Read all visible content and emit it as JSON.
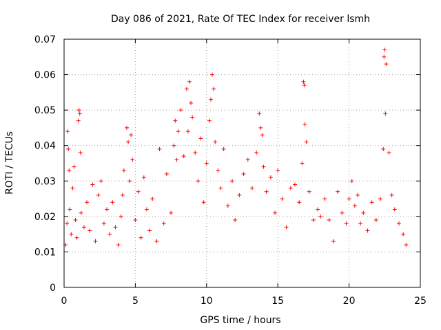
{
  "chart_data": {
    "type": "scatter",
    "title": "Day 086 of 2021, Rate Of TEC Index for receiver lsmh",
    "xlabel": "GPS time / hours",
    "ylabel": "ROTI / TECUs",
    "xlim": [
      0,
      25
    ],
    "ylim": [
      0,
      0.07
    ],
    "x_ticks": [
      0,
      5,
      10,
      15,
      20,
      25
    ],
    "y_ticks": [
      0,
      0.01,
      0.02,
      0.03,
      0.04,
      0.05,
      0.06,
      0.07
    ],
    "x_tick_labels": [
      "0",
      "5",
      "10",
      "15",
      "20",
      "25"
    ],
    "y_tick_labels": [
      "0",
      "0.01",
      "0.02",
      "0.03",
      "0.04",
      "0.05",
      "0.06",
      "0.07"
    ],
    "grid": true,
    "marker": "plus",
    "color": "#ff0000",
    "series": [
      {
        "x": [
          0.1,
          0.2,
          0.25,
          0.3,
          0.35,
          0.4,
          0.5,
          0.6,
          0.7,
          0.8,
          0.9,
          1.0,
          1.05,
          1.1,
          1.15,
          1.2,
          1.4,
          1.6,
          1.8,
          2.0,
          2.2,
          2.4,
          2.6,
          2.8,
          3.0,
          3.2,
          3.4,
          3.6,
          3.8,
          4.0,
          4.1,
          4.2,
          4.4,
          4.5,
          4.6,
          4.7,
          4.8,
          5.0,
          5.2,
          5.4,
          5.6,
          5.8,
          6.0,
          6.2,
          6.5,
          6.7,
          7.0,
          7.2,
          7.5,
          7.7,
          7.8,
          7.9,
          8.0,
          8.2,
          8.4,
          8.6,
          8.7,
          8.8,
          8.9,
          9.0,
          9.2,
          9.4,
          9.6,
          9.8,
          10.0,
          10.2,
          10.3,
          10.4,
          10.5,
          10.6,
          10.8,
          11.0,
          11.2,
          11.5,
          11.8,
          12.0,
          12.3,
          12.6,
          12.9,
          13.2,
          13.5,
          13.7,
          13.8,
          13.9,
          14.0,
          14.2,
          14.5,
          14.8,
          15.0,
          15.3,
          15.6,
          15.9,
          16.2,
          16.5,
          16.7,
          16.8,
          16.85,
          16.9,
          17.0,
          17.2,
          17.5,
          17.8,
          18.0,
          18.3,
          18.6,
          18.9,
          19.2,
          19.5,
          19.8,
          20.0,
          20.2,
          20.4,
          20.6,
          20.8,
          21.0,
          21.3,
          21.6,
          21.9,
          22.2,
          22.4,
          22.45,
          22.5,
          22.55,
          22.6,
          22.8,
          23.0,
          23.2,
          23.5,
          23.8,
          24.0
        ],
        "y": [
          0.012,
          0.018,
          0.044,
          0.039,
          0.033,
          0.022,
          0.015,
          0.028,
          0.034,
          0.019,
          0.014,
          0.047,
          0.05,
          0.049,
          0.038,
          0.021,
          0.017,
          0.024,
          0.016,
          0.029,
          0.013,
          0.026,
          0.03,
          0.018,
          0.022,
          0.015,
          0.024,
          0.017,
          0.012,
          0.02,
          0.026,
          0.033,
          0.045,
          0.041,
          0.03,
          0.043,
          0.036,
          0.019,
          0.027,
          0.014,
          0.031,
          0.022,
          0.016,
          0.025,
          0.013,
          0.039,
          0.018,
          0.032,
          0.021,
          0.04,
          0.047,
          0.036,
          0.044,
          0.05,
          0.037,
          0.056,
          0.044,
          0.058,
          0.052,
          0.048,
          0.038,
          0.03,
          0.042,
          0.024,
          0.035,
          0.047,
          0.053,
          0.06,
          0.056,
          0.041,
          0.033,
          0.028,
          0.039,
          0.023,
          0.03,
          0.019,
          0.026,
          0.032,
          0.036,
          0.028,
          0.038,
          0.049,
          0.045,
          0.043,
          0.034,
          0.027,
          0.031,
          0.021,
          0.033,
          0.025,
          0.017,
          0.028,
          0.029,
          0.024,
          0.035,
          0.058,
          0.057,
          0.046,
          0.041,
          0.027,
          0.019,
          0.022,
          0.02,
          0.025,
          0.019,
          0.013,
          0.027,
          0.021,
          0.018,
          0.025,
          0.03,
          0.023,
          0.026,
          0.018,
          0.021,
          0.016,
          0.024,
          0.019,
          0.025,
          0.039,
          0.065,
          0.067,
          0.049,
          0.063,
          0.038,
          0.026,
          0.022,
          0.018,
          0.015,
          0.012
        ]
      }
    ]
  }
}
